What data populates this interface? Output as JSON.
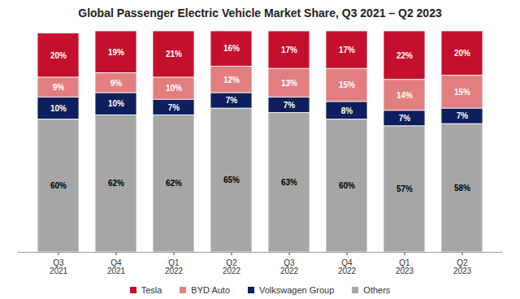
{
  "chart_data": {
    "type": "bar",
    "title": "Global Passenger Electric Vehicle Market Share, Q3 2021 – Q2 2023",
    "categories": [
      "Q3 2021",
      "Q4 2021",
      "Q1 2022",
      "Q2 2022",
      "Q3 2022",
      "Q4 2022",
      "Q1 2023",
      "Q2 2023"
    ],
    "series": [
      {
        "name": "Tesla",
        "color": "#c5102d",
        "values": [
          20,
          19,
          21,
          16,
          17,
          17,
          22,
          20
        ],
        "value_labels": [
          "20%",
          "19%",
          "21%",
          "16%",
          "17%",
          "17%",
          "22%",
          "20%"
        ]
      },
      {
        "name": "BYD Auto",
        "color": "#e37e80",
        "values": [
          9,
          9,
          10,
          12,
          13,
          15,
          14,
          15
        ],
        "value_labels": [
          "9%",
          "9%",
          "10%",
          "12%",
          "13%",
          "15%",
          "14%",
          "15%"
        ]
      },
      {
        "name": "Volkswagen Group",
        "color": "#0d1f5c",
        "values": [
          10,
          10,
          7,
          7,
          7,
          8,
          7,
          7
        ],
        "value_labels": [
          "10%",
          "10%",
          "7%",
          "7%",
          "7%",
          "8%",
          "7%",
          "7%"
        ]
      },
      {
        "name": "Others",
        "color": "#a6a6a6",
        "values": [
          60,
          62,
          62,
          65,
          63,
          60,
          57,
          58
        ],
        "value_labels": [
          "60%",
          "62%",
          "62%",
          "65%",
          "63%",
          "60%",
          "57%",
          "58%"
        ]
      }
    ],
    "ylim": [
      0,
      100
    ],
    "stacked": true,
    "data_labels": true,
    "tick_labels": "x",
    "grid": false,
    "legend": "bottom"
  }
}
